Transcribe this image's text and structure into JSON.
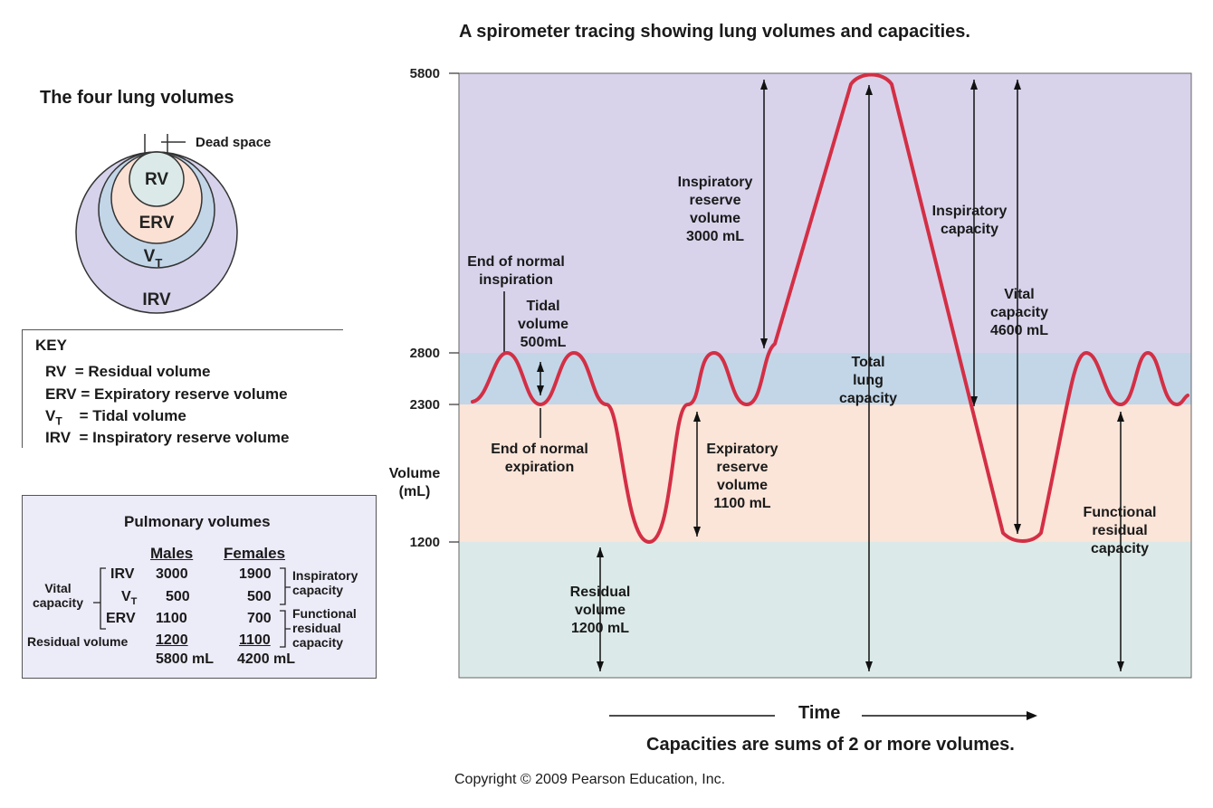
{
  "title": "A spirometer tracing showing lung volumes and capacities.",
  "venn": {
    "title": "The four lung volumes",
    "dead_space": "Dead space",
    "rv": "RV",
    "erv": "ERV",
    "vt": "V",
    "vt_sub": "T",
    "irv": "IRV",
    "colors": {
      "irv": "#d6d2eb",
      "vt": "#c2d6e8",
      "erv": "#fbe1d4",
      "rv": "#dbeae8"
    }
  },
  "key": {
    "title": "KEY",
    "rows": [
      {
        "abbr": "RV",
        "sub": "",
        "text": "  = Residual volume"
      },
      {
        "abbr": "ERV",
        "sub": "",
        "text": " = Expiratory reserve volume"
      },
      {
        "abbr": "V",
        "sub": "T",
        "text": "    = Tidal volume"
      },
      {
        "abbr": "IRV",
        "sub": "",
        "text": "  = Inspiratory reserve volume"
      }
    ]
  },
  "pulmonary": {
    "title": "Pulmonary volumes",
    "col_males": "Males",
    "col_females": "Females",
    "vital_capacity": "Vital\ncapacity",
    "inspiratory_capacity": "Inspiratory\ncapacity",
    "functional_residual_capacity": "Functional\nresidual\ncapacity",
    "rows": [
      {
        "label": "IRV",
        "sub": "",
        "males": "3000",
        "females": "1900"
      },
      {
        "label": "V",
        "sub": "T",
        "males": "500",
        "females": "500"
      },
      {
        "label": "ERV",
        "sub": "",
        "males": "1100",
        "females": "700"
      },
      {
        "label": "Residual volume",
        "sub": "",
        "males": "1200",
        "females": "1100"
      }
    ],
    "totals": {
      "males": "5800 mL",
      "females": "4200 mL"
    }
  },
  "chart_data": {
    "type": "line",
    "ylabel": "Volume\n(mL)",
    "xlabel": "Time",
    "y_ticks": [
      5800,
      2800,
      2300,
      1200
    ],
    "bands": [
      {
        "from": 2800,
        "to": 5800,
        "color": "#d8d3eb"
      },
      {
        "from": 2300,
        "to": 2800,
        "color": "#c2d6e8"
      },
      {
        "from": 1200,
        "to": 2300,
        "color": "#fbe4d8"
      },
      {
        "from": 0,
        "to": 1200,
        "color": "#dbeae8"
      }
    ],
    "line_color": "#d32f45",
    "annotations": {
      "end_inspiration": "End of normal\ninspiration",
      "tidal_volume": "Tidal\nvolume\n500mL",
      "end_expiration": "End of normal\nexpiration",
      "irv": "Inspiratory\nreserve\nvolume\n3000 mL",
      "erv": "Expiratory\nreserve\nvolume\n1100 mL",
      "rv": "Residual\nvolume\n1200 mL",
      "tlc": "Total\nlung\ncapacity",
      "ic": "Inspiratory\ncapacity",
      "vc": "Vital\ncapacity\n4600 mL",
      "frc": "Functional\nresidual\ncapacity"
    }
  },
  "footer": {
    "note": "Capacities are sums of 2 or more volumes.",
    "copyright": "Copyright © 2009 Pearson Education, Inc."
  }
}
